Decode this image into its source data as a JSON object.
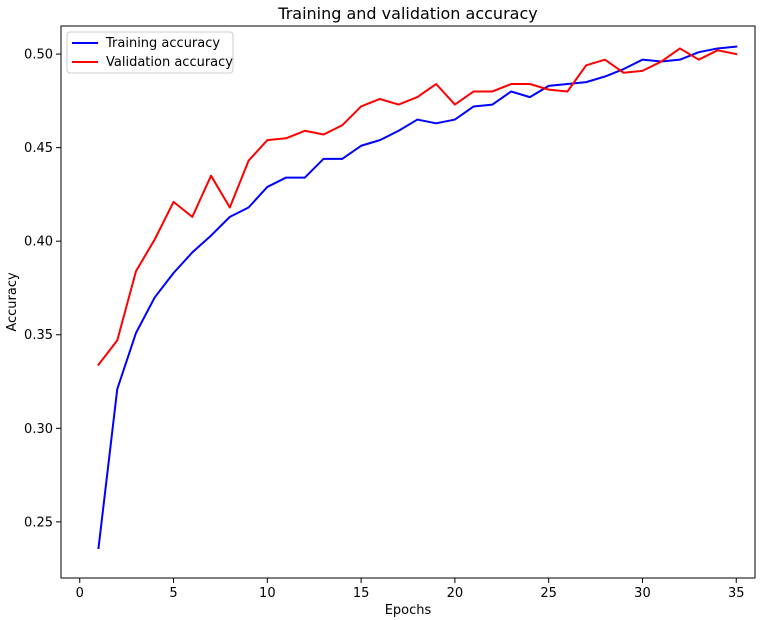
{
  "chart_data": {
    "type": "line",
    "title": "Training and validation accuracy",
    "xlabel": "Epochs",
    "ylabel": "Accuracy",
    "xlim": [
      -1.0,
      36.0
    ],
    "ylim": [
      0.22,
      0.515
    ],
    "xticks": [
      0,
      5,
      10,
      15,
      20,
      25,
      30,
      35
    ],
    "yticks": [
      0.25,
      0.3,
      0.35,
      0.4,
      0.45,
      0.5
    ],
    "ytick_labels": [
      "0.25",
      "0.30",
      "0.35",
      "0.40",
      "0.45",
      "0.50"
    ],
    "grid": false,
    "legend_position": "top-left",
    "x": [
      1,
      2,
      3,
      4,
      5,
      6,
      7,
      8,
      9,
      10,
      11,
      12,
      13,
      14,
      15,
      16,
      17,
      18,
      19,
      20,
      21,
      22,
      23,
      24,
      25,
      26,
      27,
      28,
      29,
      30,
      31,
      32,
      33,
      34,
      35
    ],
    "series": [
      {
        "name": "Training accuracy",
        "color": "#0000ff",
        "values": [
          0.236,
          0.321,
          0.351,
          0.37,
          0.383,
          0.394,
          0.403,
          0.413,
          0.418,
          0.429,
          0.434,
          0.434,
          0.444,
          0.444,
          0.451,
          0.454,
          0.459,
          0.465,
          0.463,
          0.465,
          0.472,
          0.473,
          0.48,
          0.477,
          0.483,
          0.484,
          0.485,
          0.488,
          0.492,
          0.497,
          0.496,
          0.497,
          0.501,
          0.503,
          0.504
        ]
      },
      {
        "name": "Validation accuracy",
        "color": "#ff0000",
        "values": [
          0.334,
          0.347,
          0.384,
          0.401,
          0.421,
          0.413,
          0.435,
          0.418,
          0.443,
          0.454,
          0.455,
          0.459,
          0.457,
          0.462,
          0.472,
          0.476,
          0.473,
          0.477,
          0.484,
          0.473,
          0.48,
          0.48,
          0.484,
          0.484,
          0.481,
          0.48,
          0.494,
          0.497,
          0.49,
          0.491,
          0.496,
          0.503,
          0.497,
          0.502,
          0.5
        ]
      }
    ]
  }
}
